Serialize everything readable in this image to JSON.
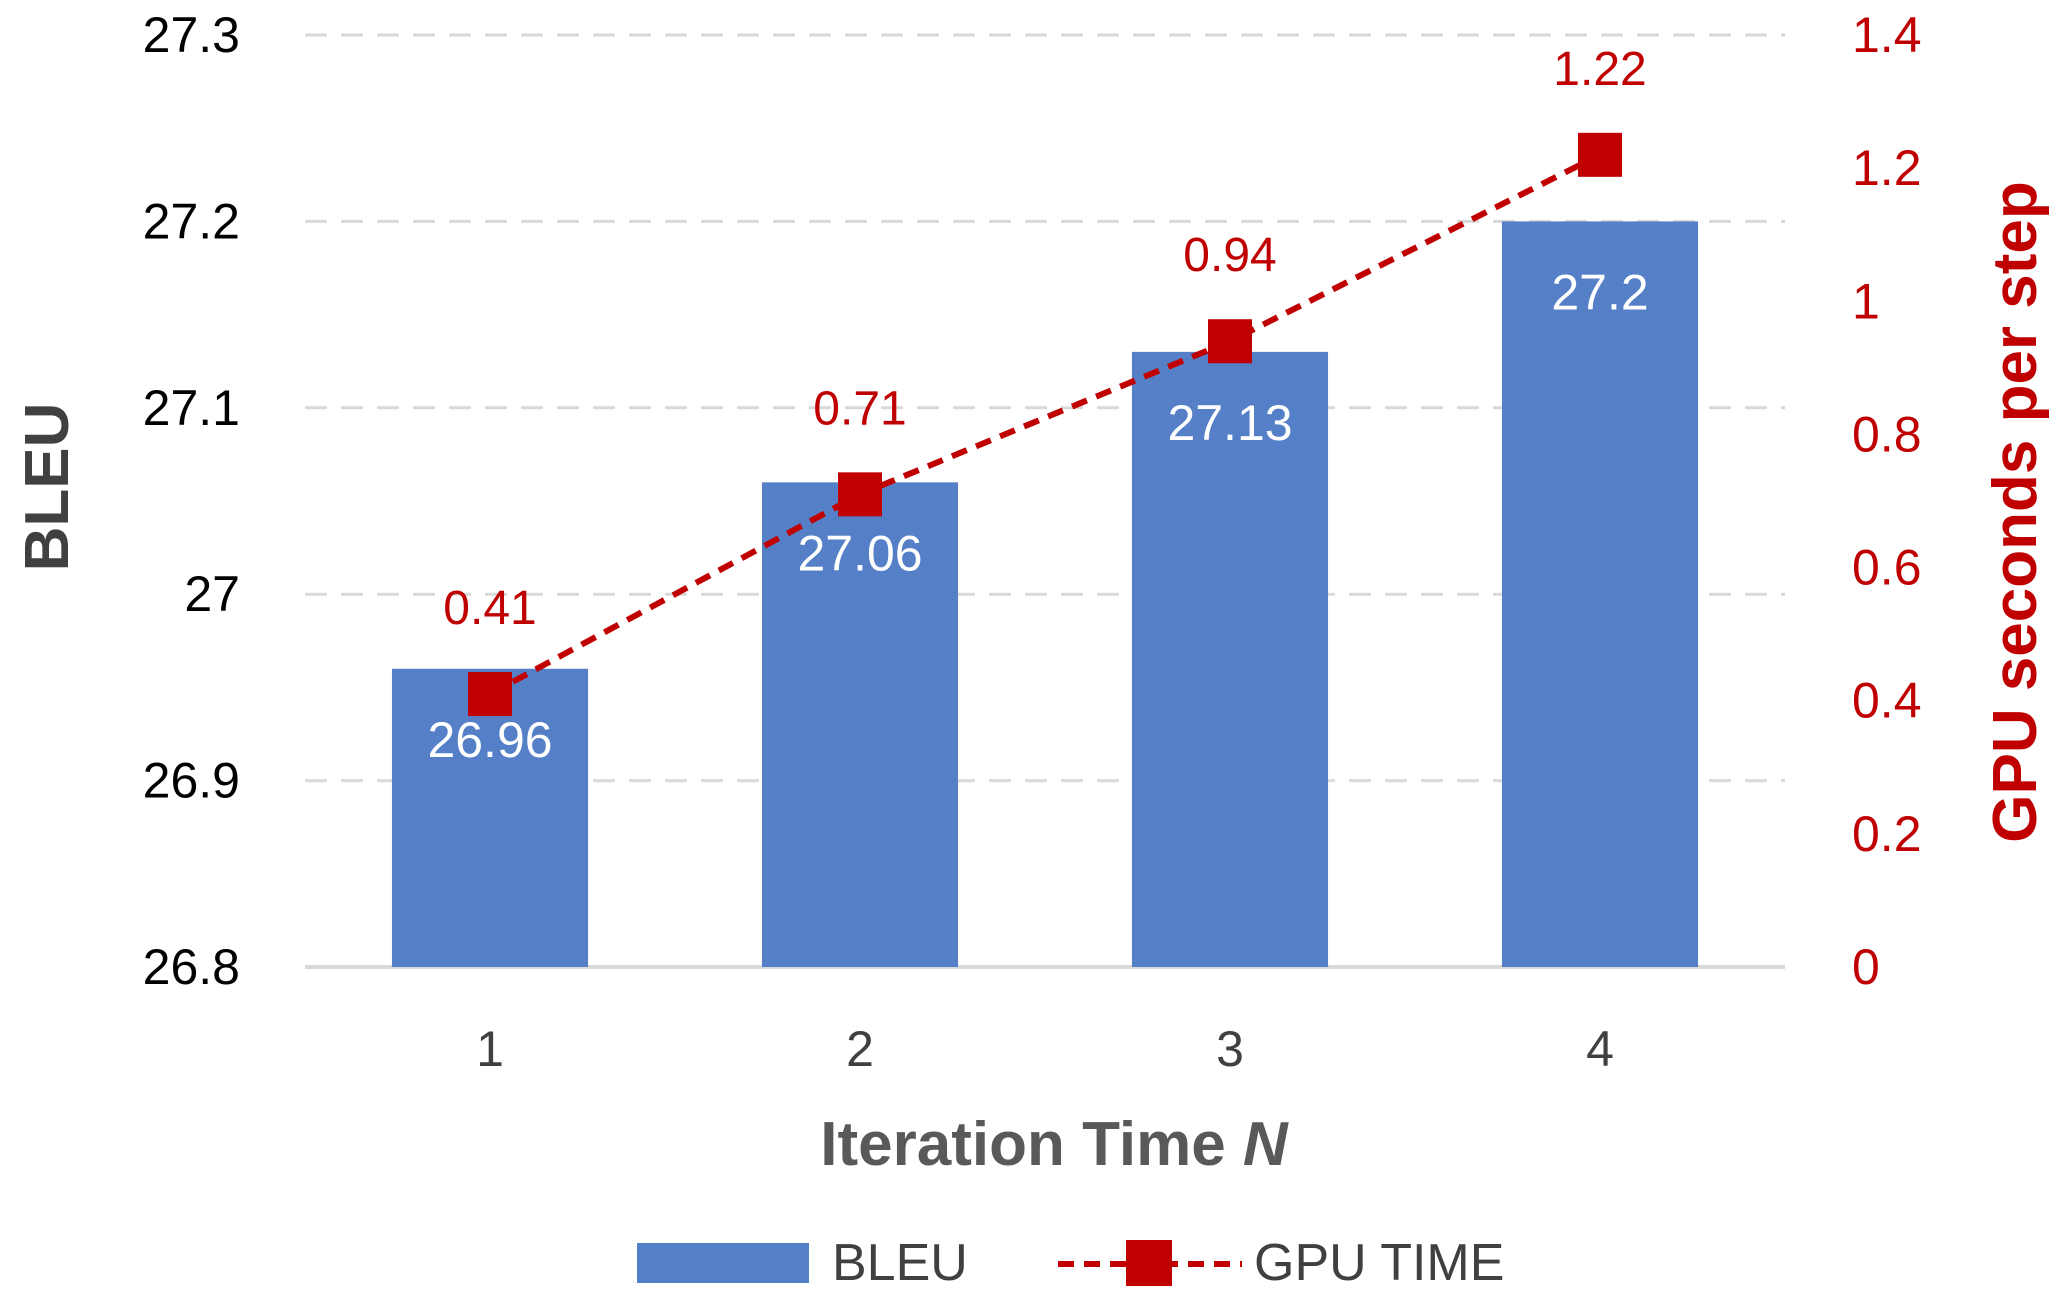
{
  "chart_data": {
    "type": "bar",
    "categories": [
      "1",
      "2",
      "3",
      "4"
    ],
    "xlabel": "Iteration Time N",
    "xlabel_parts": {
      "main": "Iteration Time ",
      "italic": "N"
    },
    "ylabel": "BLEU",
    "ylabel_right": "GPU seconds per step",
    "ylim": [
      26.8,
      27.3
    ],
    "ylim_right": [
      0,
      1.4
    ],
    "yticks": [
      "26.8",
      "26.9",
      "27",
      "27.1",
      "27.2",
      "27.3"
    ],
    "yticks_right": [
      "0",
      "0.2",
      "0.4",
      "0.6",
      "0.8",
      "1",
      "1.2",
      "1.4"
    ],
    "grid": true,
    "legend_position": "bottom",
    "series": [
      {
        "name": "BLEU",
        "type": "bar",
        "axis": "left",
        "color": "#5580c8",
        "values": [
          26.96,
          27.06,
          27.13,
          27.2
        ],
        "labels": [
          "26.96",
          "27.06",
          "27.13",
          "27.2"
        ]
      },
      {
        "name": "GPU TIME",
        "type": "line",
        "axis": "right",
        "color": "#c00000",
        "line_style": "dashed",
        "marker": "square",
        "values": [
          0.41,
          0.71,
          0.94,
          1.22
        ],
        "labels": [
          "0.41",
          "0.71",
          "0.94",
          "1.22"
        ]
      }
    ]
  }
}
